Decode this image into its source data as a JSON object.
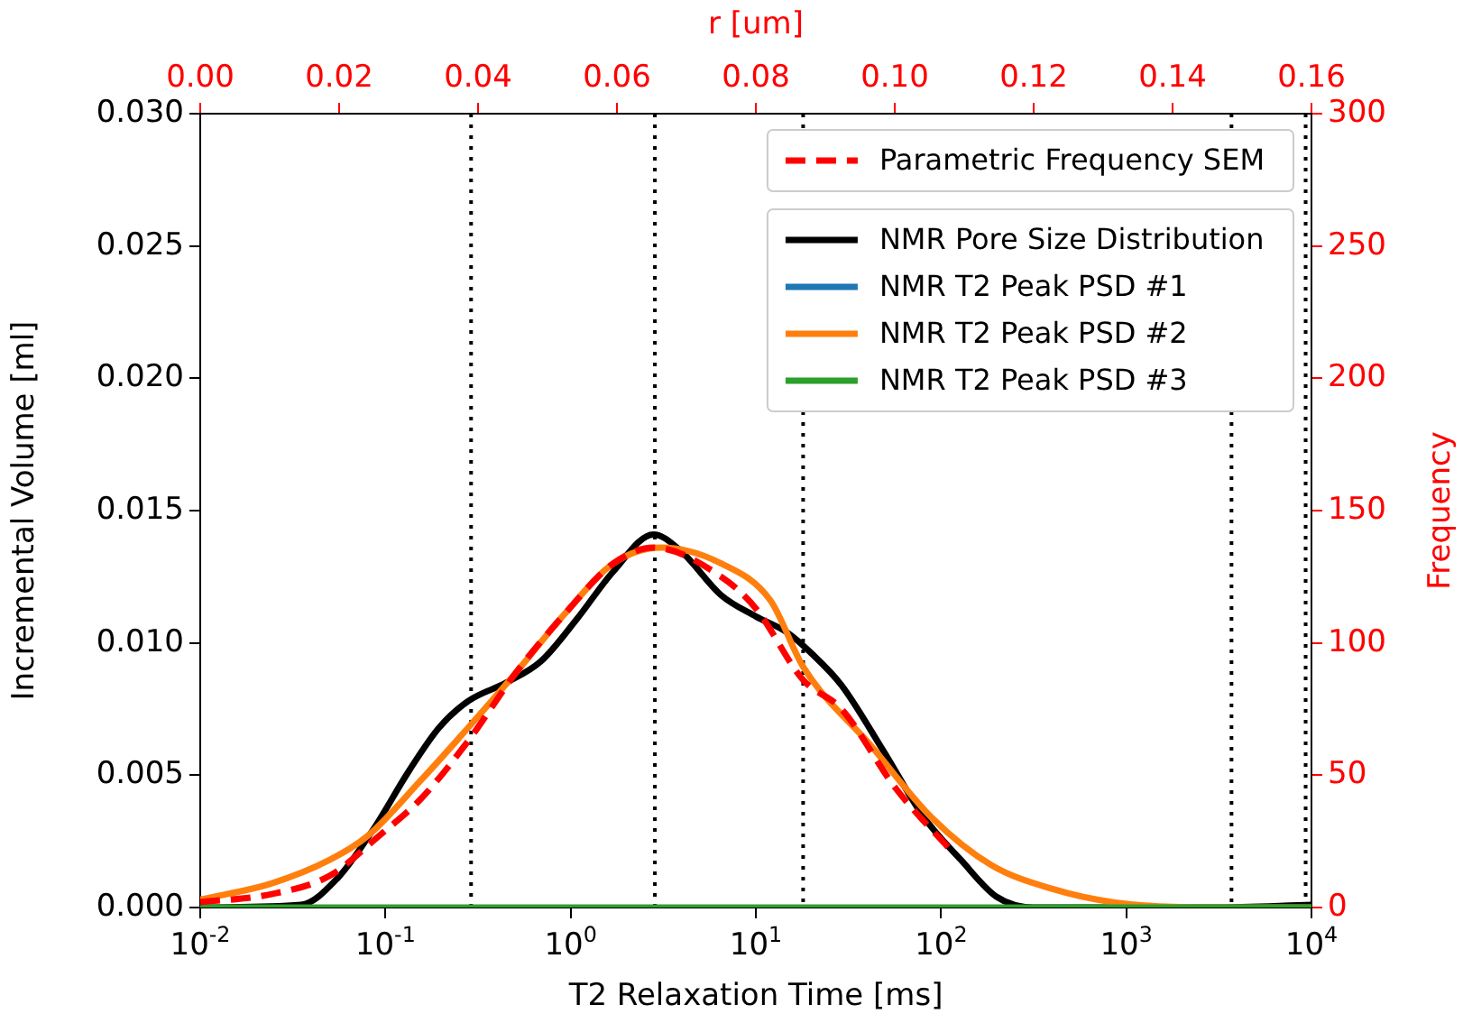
{
  "chart_data": {
    "type": "line",
    "xlabel": "T2 Relaxation Time [ms]",
    "ylabel": "Incremental Volume [ml]",
    "y2label": "Frequency",
    "x2label": "r [um]",
    "log": "x",
    "grid": false,
    "legend": "top right",
    "xlim": [
      0.01,
      10000
    ],
    "xticks": [
      {
        "value": 0.01,
        "label": "10$^{-2}$"
      },
      {
        "value": 0.1,
        "label": "10$^{-1}$"
      },
      {
        "value": 1,
        "label": "10$^{0}$"
      },
      {
        "value": 10,
        "label": "10$^{1}$"
      },
      {
        "value": 100,
        "label": "10$^{2}$"
      },
      {
        "value": 1000,
        "label": "10$^{3}$"
      },
      {
        "value": 10000,
        "label": "10$^{4}$"
      }
    ],
    "ylim": [
      0,
      0.03
    ],
    "yticks": [
      {
        "value": 0,
        "label": "0.000"
      },
      {
        "value": 0.005,
        "label": "0.005"
      },
      {
        "value": 0.01,
        "label": "0.010"
      },
      {
        "value": 0.015,
        "label": "0.015"
      },
      {
        "value": 0.02,
        "label": "0.020"
      },
      {
        "value": 0.025,
        "label": "0.025"
      },
      {
        "value": 0.03,
        "label": "0.030"
      }
    ],
    "y2lim": [
      0,
      300
    ],
    "y2ticks": [
      0,
      50,
      100,
      150,
      200,
      250,
      300
    ],
    "x2lim": [
      0,
      0.16
    ],
    "x2ticks": [
      {
        "value": 0,
        "label": "0.00"
      },
      {
        "value": 0.02,
        "label": "0.02"
      },
      {
        "value": 0.04,
        "label": "0.04"
      },
      {
        "value": 0.06,
        "label": "0.06"
      },
      {
        "value": 0.08,
        "label": "0.08"
      },
      {
        "value": 0.1,
        "label": "0.10"
      },
      {
        "value": 0.12,
        "label": "0.12"
      },
      {
        "value": 0.14,
        "label": "0.14"
      },
      {
        "value": 0.16,
        "label": "0.16"
      }
    ],
    "ref_lines": [
      {
        "axis": "x",
        "value": 0.29,
        "color": "#000000",
        "line_style": "dotted"
      },
      {
        "axis": "x",
        "value": 2.85,
        "color": "#000000",
        "line_style": "dotted"
      },
      {
        "axis": "x",
        "value": 18,
        "color": "#000000",
        "line_style": "dotted"
      },
      {
        "axis": "x",
        "value": 3700,
        "color": "#000000",
        "line_style": "dotted"
      },
      {
        "axis": "x",
        "value": 9300,
        "color": "#000000",
        "line_style": "dotted"
      }
    ],
    "series": [
      {
        "name": "NMR Pore Size Distribution",
        "color": "#000000",
        "x": [
          0.01,
          0.035,
          0.055,
          0.085,
          0.135,
          0.195,
          0.28,
          0.45,
          0.69,
          1.08,
          1.7,
          2.8,
          3.9,
          6.5,
          10,
          14.7,
          20,
          29,
          49,
          81,
          128,
          200,
          316,
          1000,
          3000,
          10000
        ],
        "values": [
          0,
          0.0001,
          0.0011,
          0.0029,
          0.0052,
          0.0068,
          0.0078,
          0.0085,
          0.0093,
          0.0109,
          0.0127,
          0.0141,
          0.0135,
          0.0118,
          0.011,
          0.0104,
          0.0096,
          0.0084,
          0.0059,
          0.0034,
          0.0018,
          0.0004,
          0,
          0,
          0,
          0.0001
        ]
      },
      {
        "name": "NMR T2 Peak PSD #1",
        "color": "#1f77b4"
      },
      {
        "name": "NMR T2 Peak PSD #2",
        "color": "#ff7f0e",
        "x": [
          0.01,
          0.024,
          0.05,
          0.08,
          0.155,
          0.28,
          0.51,
          0.93,
          1.7,
          3.1,
          6.5,
          12,
          18,
          42,
          89,
          187,
          400,
          850,
          2600,
          10000
        ],
        "values": [
          0.0003,
          0.0009,
          0.0018,
          0.0027,
          0.0048,
          0.0068,
          0.0089,
          0.0111,
          0.013,
          0.0136,
          0.013,
          0.0116,
          0.0091,
          0.0061,
          0.0034,
          0.0016,
          0.0007,
          0.0002,
          0,
          0
        ]
      },
      {
        "name": "NMR T2 Peak PSD #3",
        "color": "#2ca02c",
        "x": [
          0.01,
          10000
        ],
        "values": [
          0,
          0
        ]
      },
      {
        "name": "Parametric Frequency SEM",
        "color": "#ff0000",
        "axis": "y2",
        "line_style": "dashed",
        "x": [
          0.01,
          0.024,
          0.05,
          0.092,
          0.155,
          0.28,
          0.51,
          0.93,
          1.7,
          2.8,
          6.5,
          10,
          18,
          29,
          57,
          115
        ],
        "values": [
          2,
          5,
          12,
          27,
          41,
          63,
          89,
          111,
          130,
          136,
          125,
          113,
          86,
          75,
          45,
          21
        ]
      }
    ]
  }
}
